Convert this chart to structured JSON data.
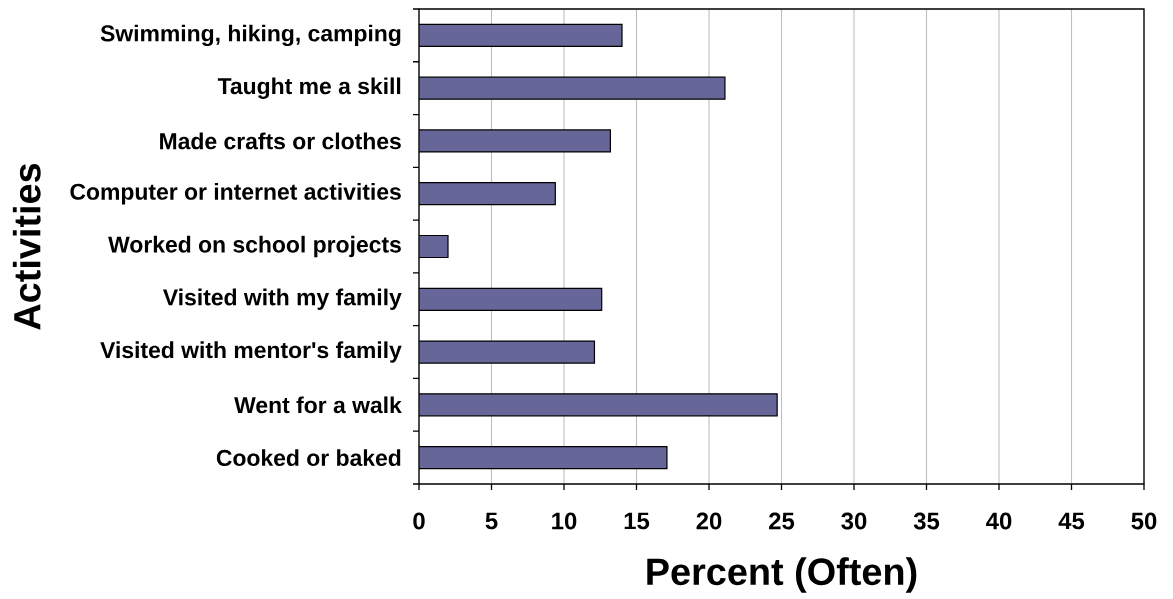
{
  "chart_data": {
    "type": "bar",
    "orientation": "horizontal",
    "categories": [
      "Swimming, hiking, camping",
      "Taught me a skill",
      "Made crafts or clothes",
      "Computer or internet activities",
      "Worked on school projects",
      "Visited with my family",
      "Visited with mentor's family",
      "Went for a walk",
      "Cooked or baked"
    ],
    "values": [
      14.0,
      21.1,
      13.2,
      9.4,
      2.0,
      12.6,
      12.1,
      24.7,
      17.1
    ],
    "color": "#666699",
    "xlabel": "Percent (Often)",
    "ylabel": "Activities",
    "xlim": [
      0,
      50
    ],
    "xticks": [
      0,
      5,
      10,
      15,
      20,
      25,
      30,
      35,
      40,
      45,
      50
    ],
    "grid": "x"
  }
}
